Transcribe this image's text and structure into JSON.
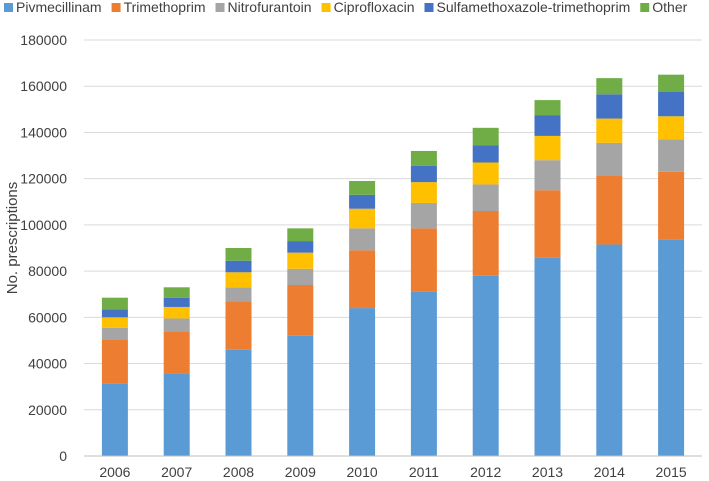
{
  "chart_data": {
    "type": "bar",
    "stacked": true,
    "title": "",
    "xlabel": "",
    "ylabel": "No. prescriptions",
    "ylim": [
      0,
      180000
    ],
    "yticks": [
      0,
      20000,
      40000,
      60000,
      80000,
      100000,
      120000,
      140000,
      160000,
      180000
    ],
    "grid": true,
    "legend_position": "top",
    "categories": [
      "2006",
      "2007",
      "2008",
      "2009",
      "2010",
      "2011",
      "2012",
      "2013",
      "2014",
      "2015"
    ],
    "series": [
      {
        "name": "Pivmecillinam",
        "color": "#5b9bd5",
        "values": [
          31500,
          35500,
          46000,
          52000,
          64000,
          71000,
          78000,
          86000,
          91500,
          93500
        ]
      },
      {
        "name": "Trimethoprim",
        "color": "#ed7d31",
        "values": [
          19000,
          18500,
          21000,
          22000,
          25000,
          27500,
          28000,
          29000,
          30000,
          29500
        ]
      },
      {
        "name": "Nitrofurantoin",
        "color": "#a5a5a5",
        "values": [
          5000,
          5500,
          6000,
          7000,
          9500,
          11000,
          11500,
          13000,
          14000,
          14000
        ]
      },
      {
        "name": "Ciprofloxacin",
        "color": "#ffc000",
        "values": [
          4500,
          5000,
          6500,
          7000,
          8500,
          9000,
          9500,
          10500,
          10500,
          10000
        ]
      },
      {
        "name": "Sulfamethoxazole-trimethoprim",
        "color": "#4472c4",
        "values": [
          3500,
          4000,
          5000,
          5000,
          6000,
          7000,
          7500,
          9000,
          10500,
          10500
        ]
      },
      {
        "name": "Other",
        "color": "#70ad47",
        "values": [
          5000,
          4500,
          5500,
          5500,
          6000,
          6500,
          7500,
          6500,
          7000,
          7500
        ]
      }
    ]
  }
}
